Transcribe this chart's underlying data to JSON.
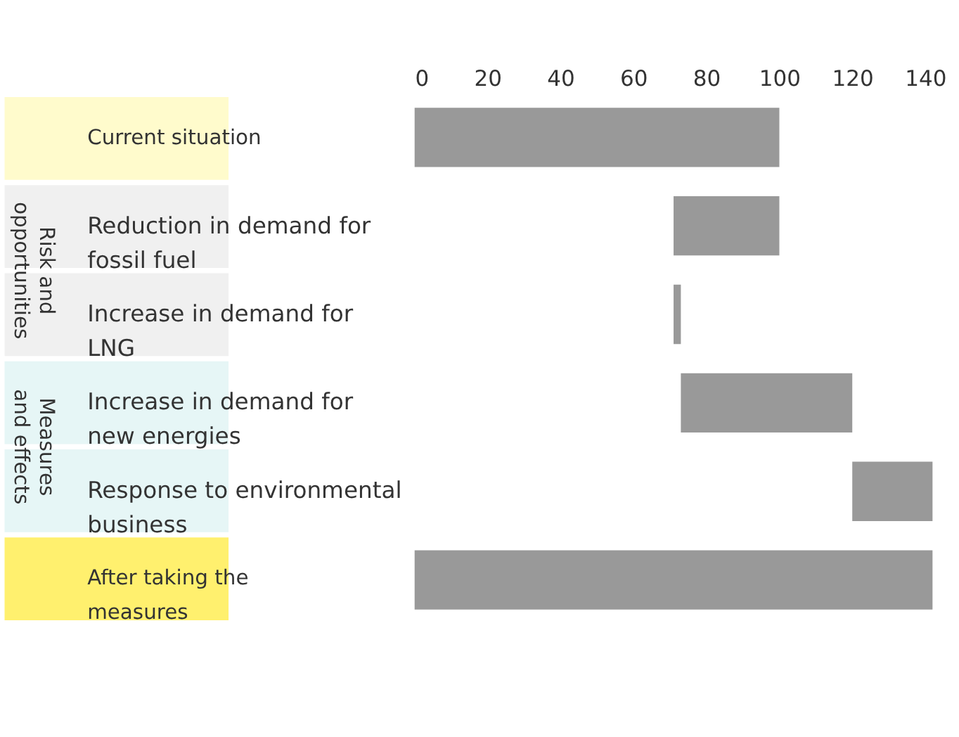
{
  "chart_data": {
    "type": "bar",
    "orientation": "horizontal",
    "categories": [
      "Current situation",
      "Reduction in demand for fossil fuel",
      "Increase in demand for LNG",
      "Increase in demand for new energies",
      "Response to environmental business",
      "After taking the measures"
    ],
    "values": [
      100,
      -29,
      2,
      47,
      22,
      142
    ],
    "base": [
      0,
      100,
      71,
      73,
      120,
      0
    ],
    "color": "#999999",
    "xlim": [
      0,
      148
    ],
    "xticks": [
      0,
      20,
      40,
      60,
      80,
      100,
      120,
      140
    ],
    "grid": false,
    "annotations": [
      "Risk and opportunities",
      "Measures and effects"
    ]
  }
}
